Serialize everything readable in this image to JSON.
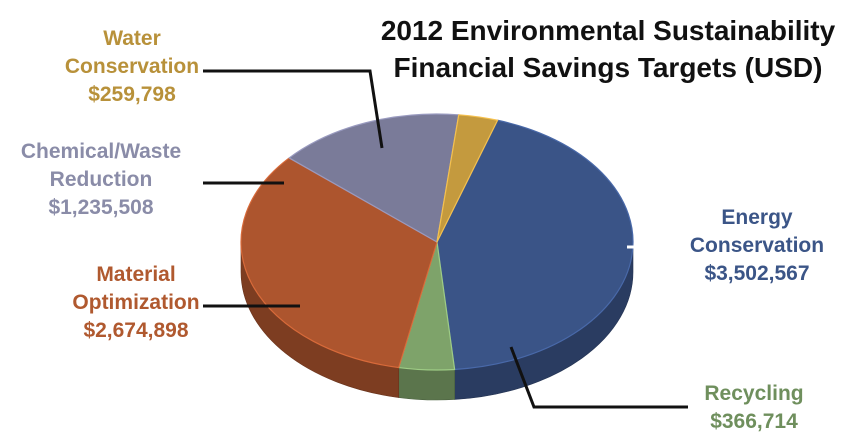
{
  "chart_data": {
    "type": "pie",
    "title_lines": [
      "2012 Environmental Sustainability",
      "Financial Savings Targets (USD)"
    ],
    "slices": [
      {
        "label_lines": [
          "Energy",
          "Conservation"
        ],
        "value_text": "$3,502,567",
        "value": 3502567,
        "color": "#3a5487",
        "label_color": "#3b5587"
      },
      {
        "label_lines": [
          "Recycling"
        ],
        "value_text": "$366,714",
        "value": 366714,
        "color": "#7ea36a",
        "label_color": "#6f8f5d"
      },
      {
        "label_lines": [
          "Material",
          "Optimization"
        ],
        "value_text": "$2,674,898",
        "value": 2674898,
        "color": "#ad552e",
        "label_color": "#b0592f"
      },
      {
        "label_lines": [
          "Chemical/Waste",
          "Reduction"
        ],
        "value_text": "$1,235,508",
        "value": 1235508,
        "color": "#7a7b99",
        "label_color": "#8a8ca8"
      },
      {
        "label_lines": [
          "Water",
          "Conservation"
        ],
        "value_text": "$259,798",
        "value": 259798,
        "color": "#c49a3e",
        "label_color": "#b8913a"
      }
    ]
  }
}
